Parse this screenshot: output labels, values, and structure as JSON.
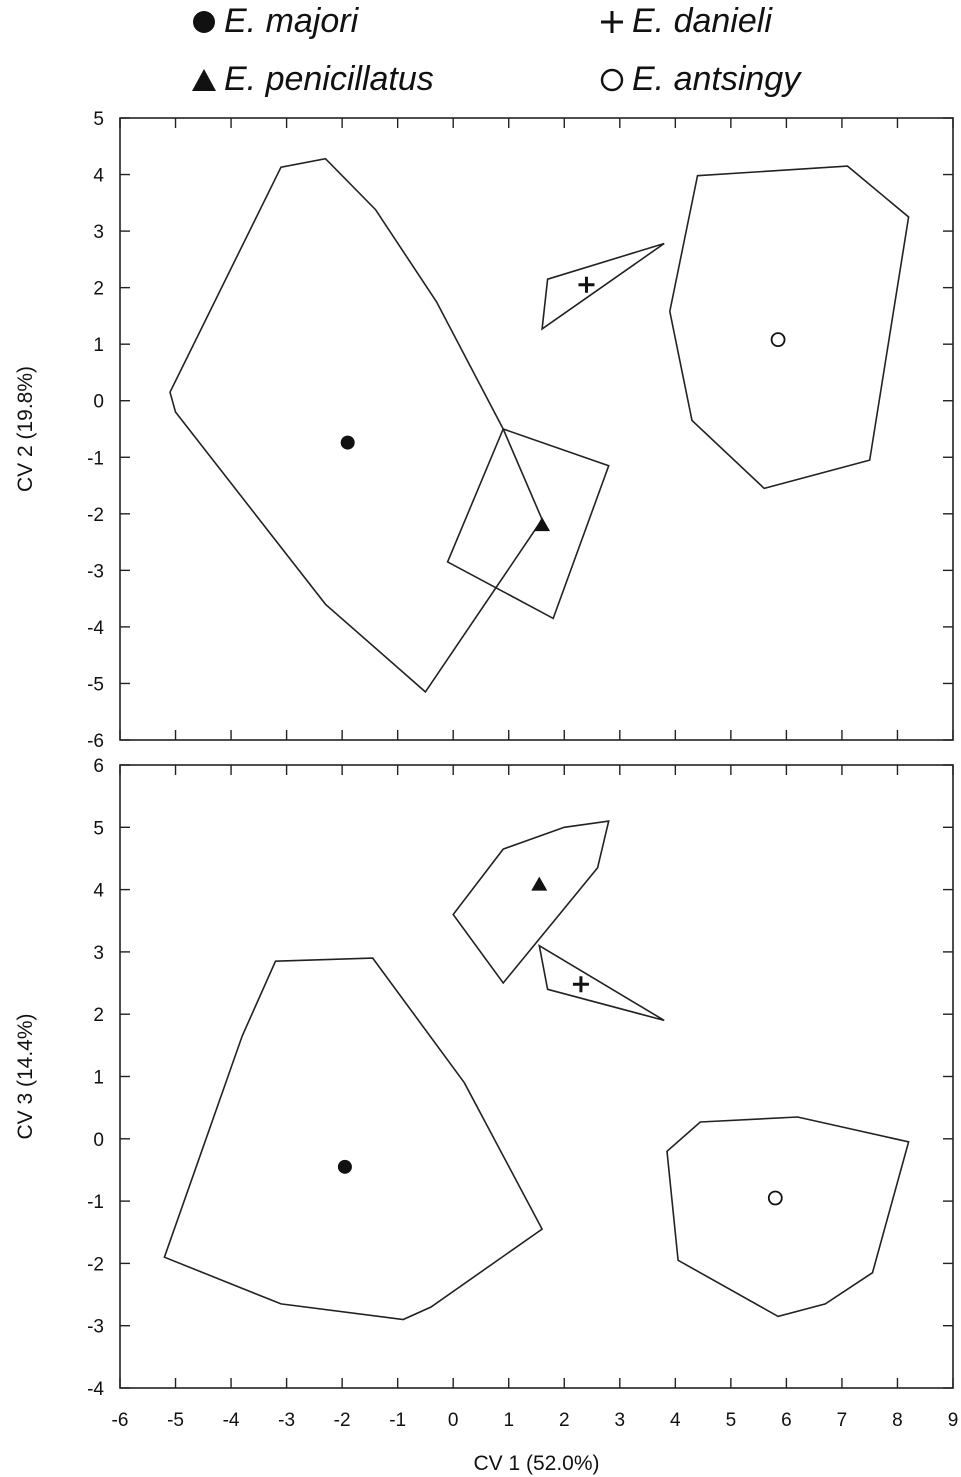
{
  "legend": [
    {
      "label": "E. majori",
      "marker": "filled-circle"
    },
    {
      "label": "E. danieli",
      "marker": "plus"
    },
    {
      "label": "E. penicillatus",
      "marker": "filled-triangle"
    },
    {
      "label": "E. antsingy",
      "marker": "open-circle"
    }
  ],
  "chart_data": [
    {
      "type": "scatter",
      "xlabel": "",
      "ylabel": "CV 2 (19.8%)",
      "xlim": [
        -6,
        9
      ],
      "ylim": [
        -6,
        5
      ],
      "yticks": [
        -6,
        -5,
        -4,
        -3,
        -2,
        -1,
        0,
        1,
        2,
        3,
        4,
        5
      ],
      "series": [
        {
          "name": "E. majori",
          "marker": "filled-circle",
          "centroid": [
            -1.9,
            -0.74
          ],
          "hull": [
            [
              -5.1,
              0.15
            ],
            [
              -3.1,
              4.13
            ],
            [
              -2.3,
              4.28
            ],
            [
              -1.4,
              3.38
            ],
            [
              -0.3,
              1.75
            ],
            [
              0.9,
              -0.5
            ],
            [
              1.6,
              -2.1
            ],
            [
              -0.5,
              -5.15
            ],
            [
              -2.3,
              -3.6
            ],
            [
              -5.0,
              -0.2
            ]
          ]
        },
        {
          "name": "E. danieli",
          "marker": "plus",
          "centroid": [
            2.4,
            2.05
          ],
          "hull": [
            [
              1.7,
              2.15
            ],
            [
              3.8,
              2.78
            ],
            [
              1.6,
              1.27
            ]
          ]
        },
        {
          "name": "E. penicillatus",
          "marker": "filled-triangle",
          "centroid": [
            1.6,
            -2.2
          ],
          "hull": [
            [
              0.9,
              -0.5
            ],
            [
              2.8,
              -1.15
            ],
            [
              1.8,
              -3.85
            ],
            [
              -0.1,
              -2.85
            ]
          ]
        },
        {
          "name": "E. antsingy",
          "marker": "open-circle",
          "centroid": [
            5.85,
            1.08
          ],
          "hull": [
            [
              4.4,
              3.98
            ],
            [
              7.1,
              4.15
            ],
            [
              8.2,
              3.25
            ],
            [
              7.5,
              -1.05
            ],
            [
              5.6,
              -1.55
            ],
            [
              4.3,
              -0.35
            ],
            [
              3.9,
              1.58
            ]
          ]
        }
      ]
    },
    {
      "type": "scatter",
      "xlabel": "CV 1 (52.0%)",
      "ylabel": "CV 3 (14.4%)",
      "xlim": [
        -6,
        9
      ],
      "ylim": [
        -4,
        6
      ],
      "xticks": [
        -6,
        -5,
        -4,
        -3,
        -2,
        -1,
        0,
        1,
        2,
        3,
        4,
        5,
        6,
        7,
        8,
        9
      ],
      "yticks": [
        -4,
        -3,
        -2,
        -1,
        0,
        1,
        2,
        3,
        4,
        5,
        6
      ],
      "series": [
        {
          "name": "E. majori",
          "marker": "filled-circle",
          "centroid": [
            -1.95,
            -0.45
          ],
          "hull": [
            [
              -3.2,
              2.85
            ],
            [
              -1.45,
              2.9
            ],
            [
              0.2,
              0.9
            ],
            [
              1.6,
              -1.45
            ],
            [
              -0.4,
              -2.7
            ],
            [
              -0.9,
              -2.9
            ],
            [
              -3.1,
              -2.65
            ],
            [
              -5.2,
              -1.9
            ],
            [
              -3.8,
              1.65
            ]
          ]
        },
        {
          "name": "E. danieli",
          "marker": "plus",
          "centroid": [
            2.3,
            2.48
          ],
          "hull": [
            [
              1.55,
              3.1
            ],
            [
              3.8,
              1.9
            ],
            [
              1.7,
              2.4
            ]
          ]
        },
        {
          "name": "E. penicillatus",
          "marker": "filled-triangle",
          "centroid": [
            1.55,
            4.08
          ],
          "hull": [
            [
              0.9,
              4.65
            ],
            [
              2.0,
              5.0
            ],
            [
              2.8,
              5.1
            ],
            [
              2.6,
              4.35
            ],
            [
              0.9,
              2.5
            ],
            [
              0.0,
              3.6
            ]
          ]
        },
        {
          "name": "E. antsingy",
          "marker": "open-circle",
          "centroid": [
            5.8,
            -0.95
          ],
          "hull": [
            [
              4.45,
              0.27
            ],
            [
              6.2,
              0.35
            ],
            [
              8.2,
              -0.05
            ],
            [
              7.55,
              -2.15
            ],
            [
              6.7,
              -2.65
            ],
            [
              5.85,
              -2.85
            ],
            [
              4.05,
              -1.95
            ],
            [
              3.85,
              -0.2
            ]
          ]
        }
      ]
    }
  ]
}
